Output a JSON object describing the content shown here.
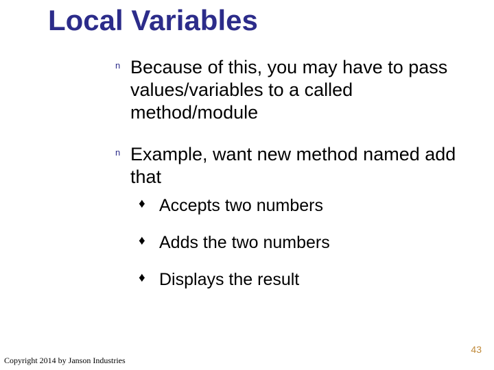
{
  "background_color": "#ffffff",
  "title": {
    "text": "Local Variables",
    "color": "#2c2c8a",
    "fontsize": 42,
    "font_weight": "bold"
  },
  "bullets": [
    {
      "text": "Because of this, you may have to pass values/variables to a called method/module",
      "marker": "n",
      "marker_color": "#2c2c8a",
      "fontsize": 27,
      "color": "#000000"
    },
    {
      "text": "Example, want new method named add that",
      "marker": "n",
      "marker_color": "#2c2c8a",
      "fontsize": 27,
      "color": "#000000",
      "sub": [
        {
          "text": "Accepts two numbers",
          "marker": "♦",
          "fontsize": 25,
          "color": "#000000"
        },
        {
          "text": "Adds the two numbers",
          "marker": "♦",
          "fontsize": 25,
          "color": "#000000"
        },
        {
          "text": "Displays the result",
          "marker": "♦",
          "fontsize": 25,
          "color": "#000000"
        }
      ]
    }
  ],
  "copyright": "Copyright 2014 by Janson Industries",
  "page_number": "43",
  "page_number_color": "#c08a3a"
}
